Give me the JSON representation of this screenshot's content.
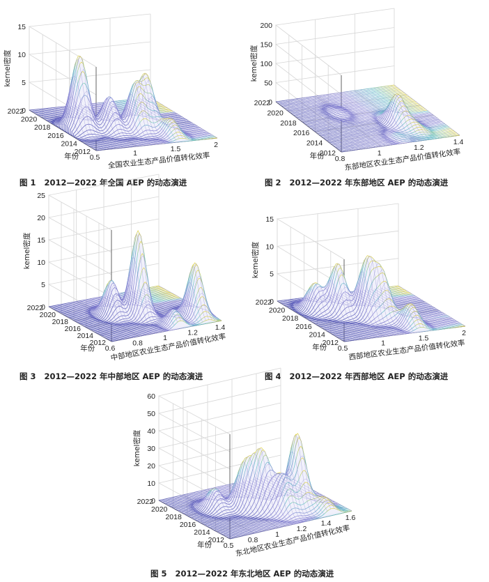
{
  "chart_data": [
    {
      "type": "surface",
      "title": "图 1　2012—2022 年全国 AEP 的动态演进",
      "figure_no": "图 1",
      "caption_text": "2012—2022 年全国 AEP 的动态演进",
      "xlabel": "全国农业生态产品价值转化效率",
      "ylabel": "年份",
      "zlabel": "kernel密度",
      "x_ticks": [
        "0.5",
        "1",
        "1.5",
        "2"
      ],
      "y_ticks": [
        "2012",
        "2014",
        "2016",
        "2018",
        "2020",
        "2022"
      ],
      "z_ticks": [
        "0",
        "5",
        "10",
        "15"
      ],
      "xlim": [
        0.5,
        2
      ],
      "ylim": [
        2012,
        2022
      ],
      "zlim": [
        0,
        15
      ],
      "peaks": [
        {
          "x": 0.72,
          "year": 2017.0,
          "height": 10.8
        },
        {
          "x": 0.63,
          "year": 2016.5,
          "height": 5.0
        },
        {
          "x": 1.0,
          "year": 2016.0,
          "height": 6.0
        },
        {
          "x": 1.28,
          "year": 2015.5,
          "height": 8.0
        },
        {
          "x": 1.45,
          "year": 2016.0,
          "height": 9.0
        },
        {
          "x": 1.55,
          "year": 2013.5,
          "height": 3.0
        }
      ]
    },
    {
      "type": "surface",
      "title": "图 2　2012—2022 年东部地区 AEP 的动态演进",
      "figure_no": "图 2",
      "caption_text": "2012—2022 年东部地区 AEP 的动态演进",
      "xlabel": "东部地区农业生态产品价值转化效率",
      "ylabel": "年份",
      "zlabel": "kemel密度",
      "x_ticks": [
        "0.8",
        "1",
        "1.2",
        "1.4"
      ],
      "y_ticks": [
        "2012",
        "2014",
        "2016",
        "2018",
        "2020",
        "2022"
      ],
      "z_ticks": [
        "0",
        "50",
        "100",
        "150",
        "200"
      ],
      "xlim": [
        0.8,
        1.4
      ],
      "ylim": [
        2012,
        2022
      ],
      "zlim": [
        0,
        200
      ],
      "peaks": [
        {
          "x": 1.0,
          "year": 2018.5,
          "height": 8
        },
        {
          "x": 1.12,
          "year": 2013.0,
          "height": 9
        },
        {
          "x": 1.2,
          "year": 2015.5,
          "height": 75
        },
        {
          "x": 1.24,
          "year": 2014.0,
          "height": 18
        }
      ]
    },
    {
      "type": "surface",
      "title": "图 3　2012—2022 年中部地区 AEP 的动态演进",
      "figure_no": "图 3",
      "caption_text": "2012—2022 年中部地区 AEP 的动态演进",
      "xlabel": "中部地区农业生态产品价值转化效率",
      "ylabel": "年份",
      "zlabel": "kemel密度",
      "x_ticks": [
        "0.6",
        "0.8",
        "1",
        "1.2",
        "1.4"
      ],
      "y_ticks": [
        "2012",
        "2014",
        "2016",
        "2018",
        "2020",
        "2022"
      ],
      "z_ticks": [
        "0",
        "5",
        "10",
        "15",
        "20",
        "25"
      ],
      "xlim": [
        0.6,
        1.4
      ],
      "ylim": [
        2012,
        2022
      ],
      "zlim": [
        0,
        25
      ],
      "peaks": [
        {
          "x": 0.85,
          "year": 2017.5,
          "height": 8.0
        },
        {
          "x": 1.0,
          "year": 2016.5,
          "height": 19.0
        },
        {
          "x": 1.1,
          "year": 2013.0,
          "height": 3.5
        },
        {
          "x": 1.3,
          "year": 2014.0,
          "height": 12.0
        }
      ]
    },
    {
      "type": "surface",
      "title": "图 4　2012—2022 年西部地区 AEP 的动态演进",
      "figure_no": "图 4",
      "caption_text": "2012—2022 年西部地区 AEP 的动态演进",
      "xlabel": "西部地区农业生态产品价值转化效率",
      "ylabel": "年份",
      "zlabel": "kemel密度",
      "x_ticks": [
        "0.5",
        "1",
        "1.5",
        "2"
      ],
      "y_ticks": [
        "2012",
        "2014",
        "2016",
        "2018",
        "2020",
        "2022"
      ],
      "z_ticks": [
        "0",
        "5",
        "10",
        "15"
      ],
      "xlim": [
        0.5,
        2
      ],
      "ylim": [
        2012,
        2022
      ],
      "zlim": [
        0,
        15
      ],
      "peaks": [
        {
          "x": 0.72,
          "year": 2019.0,
          "height": 5.0
        },
        {
          "x": 0.92,
          "year": 2018.0,
          "height": 9.0
        },
        {
          "x": 1.15,
          "year": 2016.5,
          "height": 10.0
        },
        {
          "x": 1.3,
          "year": 2016.0,
          "height": 8.0
        },
        {
          "x": 1.45,
          "year": 2013.5,
          "height": 4.0
        }
      ]
    },
    {
      "type": "surface",
      "title": "图 5　2012—2022 年东北地区 AEP 的动态演进",
      "figure_no": "图 5",
      "caption_text": "2012—2022 年东北地区 AEP 的动态演进",
      "xlabel": "东北地区农业生态产品价值转化效率",
      "ylabel": "年份",
      "zlabel": "kemel密度",
      "x_ticks": [
        "0.5",
        "0.8",
        "1",
        "1.2",
        "1.4",
        "1.6"
      ],
      "y_ticks": [
        "2012",
        "2014",
        "2016",
        "2018",
        "2020",
        "2022"
      ],
      "z_ticks": [
        "0",
        "10",
        "20",
        "30",
        "40",
        "50",
        "60"
      ],
      "xlim": [
        0.5,
        1.6
      ],
      "ylim": [
        2012,
        2022
      ],
      "zlim": [
        0,
        60
      ],
      "peaks": [
        {
          "x": 0.75,
          "year": 2018.0,
          "height": 12
        },
        {
          "x": 0.95,
          "year": 2017.0,
          "height": 25
        },
        {
          "x": 1.05,
          "year": 2016.0,
          "height": 32
        },
        {
          "x": 1.15,
          "year": 2014.5,
          "height": 20
        },
        {
          "x": 1.3,
          "year": 2015.0,
          "height": 42
        },
        {
          "x": 1.42,
          "year": 2013.0,
          "height": 8
        }
      ]
    }
  ]
}
